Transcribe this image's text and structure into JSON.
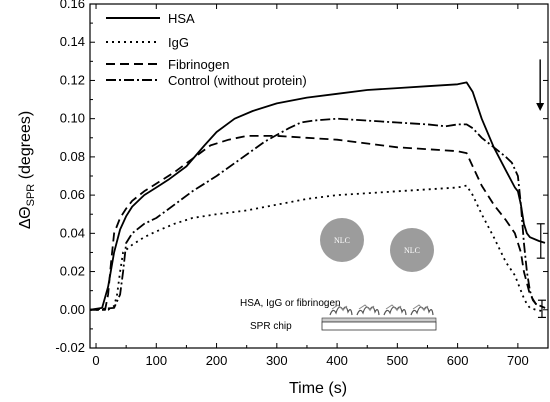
{
  "chart_data": {
    "type": "line",
    "xlabel": "Time (s)",
    "ylabel_main": "ΔΘ",
    "ylabel_sub": "SPR",
    "ylabel_unit": "(degrees)",
    "xlim": [
      -10,
      750
    ],
    "ylim": [
      -0.02,
      0.16
    ],
    "xticks": [
      0,
      100,
      200,
      300,
      400,
      500,
      600,
      700
    ],
    "yticks": [
      "-0.02",
      "0.00",
      "0.02",
      "0.04",
      "0.06",
      "0.08",
      "0.10",
      "0.12",
      "0.14",
      "0.16"
    ],
    "legend_position": "top-left",
    "series": [
      {
        "name": "HSA",
        "dash": "solid",
        "x": [
          -10,
          10,
          20,
          30,
          40,
          50,
          60,
          80,
          100,
          120,
          150,
          180,
          200,
          230,
          260,
          300,
          350,
          400,
          450,
          500,
          550,
          600,
          615,
          625,
          640,
          660,
          680,
          695,
          700,
          705,
          710,
          715,
          720,
          735,
          745
        ],
        "y": [
          0.0,
          0.001,
          0.012,
          0.03,
          0.042,
          0.049,
          0.054,
          0.06,
          0.064,
          0.068,
          0.075,
          0.086,
          0.093,
          0.1,
          0.104,
          0.108,
          0.111,
          0.113,
          0.115,
          0.116,
          0.117,
          0.118,
          0.119,
          0.114,
          0.1,
          0.085,
          0.073,
          0.064,
          0.062,
          0.055,
          0.045,
          0.04,
          0.038,
          0.036,
          0.035
        ]
      },
      {
        "name": "IgG",
        "dash": "dot",
        "x": [
          -10,
          20,
          30,
          35,
          40,
          45,
          60,
          80,
          100,
          130,
          160,
          200,
          250,
          300,
          350,
          400,
          450,
          500,
          550,
          600,
          615,
          625,
          640,
          660,
          680,
          695,
          705,
          710,
          715,
          720,
          730,
          745
        ],
        "y": [
          0.0,
          0.0,
          0.002,
          0.008,
          0.02,
          0.03,
          0.034,
          0.038,
          0.041,
          0.045,
          0.048,
          0.05,
          0.052,
          0.055,
          0.058,
          0.06,
          0.061,
          0.062,
          0.063,
          0.064,
          0.065,
          0.06,
          0.05,
          0.038,
          0.025,
          0.018,
          0.01,
          0.006,
          0.003,
          0.001,
          0.0,
          -0.001
        ]
      },
      {
        "name": "Fibrinogen",
        "dash": "dash",
        "x": [
          -10,
          15,
          20,
          25,
          30,
          40,
          50,
          60,
          80,
          100,
          130,
          160,
          190,
          220,
          250,
          300,
          350,
          400,
          450,
          500,
          550,
          600,
          615,
          625,
          640,
          660,
          680,
          695,
          705,
          710,
          720,
          730,
          745
        ],
        "y": [
          0.0,
          0.0,
          0.008,
          0.025,
          0.04,
          0.048,
          0.053,
          0.057,
          0.062,
          0.066,
          0.072,
          0.079,
          0.086,
          0.089,
          0.091,
          0.091,
          0.09,
          0.089,
          0.087,
          0.085,
          0.084,
          0.083,
          0.082,
          0.075,
          0.065,
          0.055,
          0.047,
          0.04,
          0.03,
          0.02,
          0.008,
          0.003,
          0.001
        ]
      },
      {
        "name": "Control (without protein)",
        "dash": "dashdot",
        "x": [
          -10,
          30,
          40,
          45,
          50,
          60,
          80,
          100,
          130,
          160,
          200,
          240,
          280,
          320,
          340,
          360,
          400,
          450,
          500,
          550,
          580,
          600,
          615,
          625,
          640,
          660,
          680,
          690,
          700,
          705,
          710,
          715,
          720,
          725,
          730,
          745
        ],
        "y": [
          0.0,
          0.001,
          0.008,
          0.02,
          0.035,
          0.04,
          0.045,
          0.048,
          0.055,
          0.062,
          0.07,
          0.079,
          0.088,
          0.095,
          0.098,
          0.099,
          0.1,
          0.099,
          0.098,
          0.097,
          0.096,
          0.097,
          0.097,
          0.095,
          0.09,
          0.085,
          0.08,
          0.077,
          0.07,
          0.055,
          0.035,
          0.02,
          0.01,
          0.005,
          0.003,
          0.001
        ]
      }
    ],
    "error_bars": [
      {
        "x": 738,
        "low": 0.027,
        "high": 0.045
      },
      {
        "x": 740,
        "low": -0.004,
        "high": 0.005
      }
    ],
    "arrow": {
      "x": 737,
      "y_top": 0.131,
      "y_bottom": 0.104
    },
    "inset": {
      "nlc_label": "NLC",
      "protein_label": "HSA, IgG or fibrinogen",
      "chip_label": "SPR chip"
    }
  }
}
